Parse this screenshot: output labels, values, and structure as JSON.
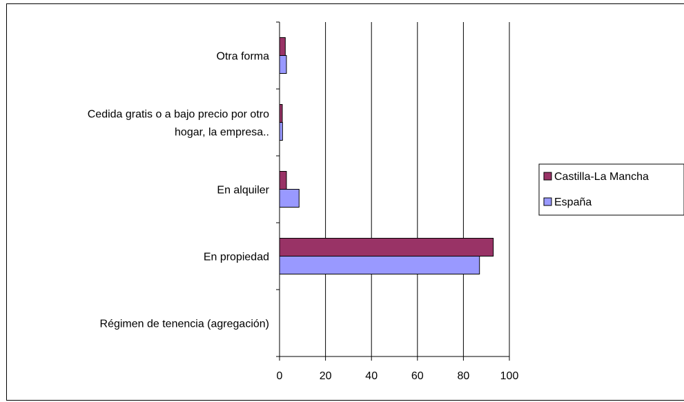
{
  "chart_data": {
    "type": "bar",
    "orientation": "horizontal",
    "categories": [
      "Otra forma",
      "Cedida gratis o a bajo precio por otro hogar, la empresa..",
      "En alquiler",
      "En propiedad",
      "Régimen de tenencia (agregación)"
    ],
    "category_label_lines": [
      [
        "Otra forma"
      ],
      [
        "Cedida gratis o a bajo precio por otro",
        "hogar, la empresa.."
      ],
      [
        "En alquiler"
      ],
      [
        "En propiedad"
      ],
      [
        "Régimen de tenencia (agregación)"
      ]
    ],
    "series": [
      {
        "name": "Castilla-La Mancha",
        "color": "#993366",
        "values": [
          2.5,
          1.2,
          3.0,
          93.0,
          null
        ]
      },
      {
        "name": "España",
        "color": "#9999ff",
        "values": [
          3.0,
          1.3,
          8.5,
          87.0,
          null
        ]
      }
    ],
    "xlim": [
      0,
      100
    ],
    "xticks": [
      "0",
      "20",
      "40",
      "60",
      "80",
      "100"
    ],
    "title": "",
    "xlabel": "",
    "ylabel": "",
    "grid": "vertical",
    "legend": "right"
  }
}
